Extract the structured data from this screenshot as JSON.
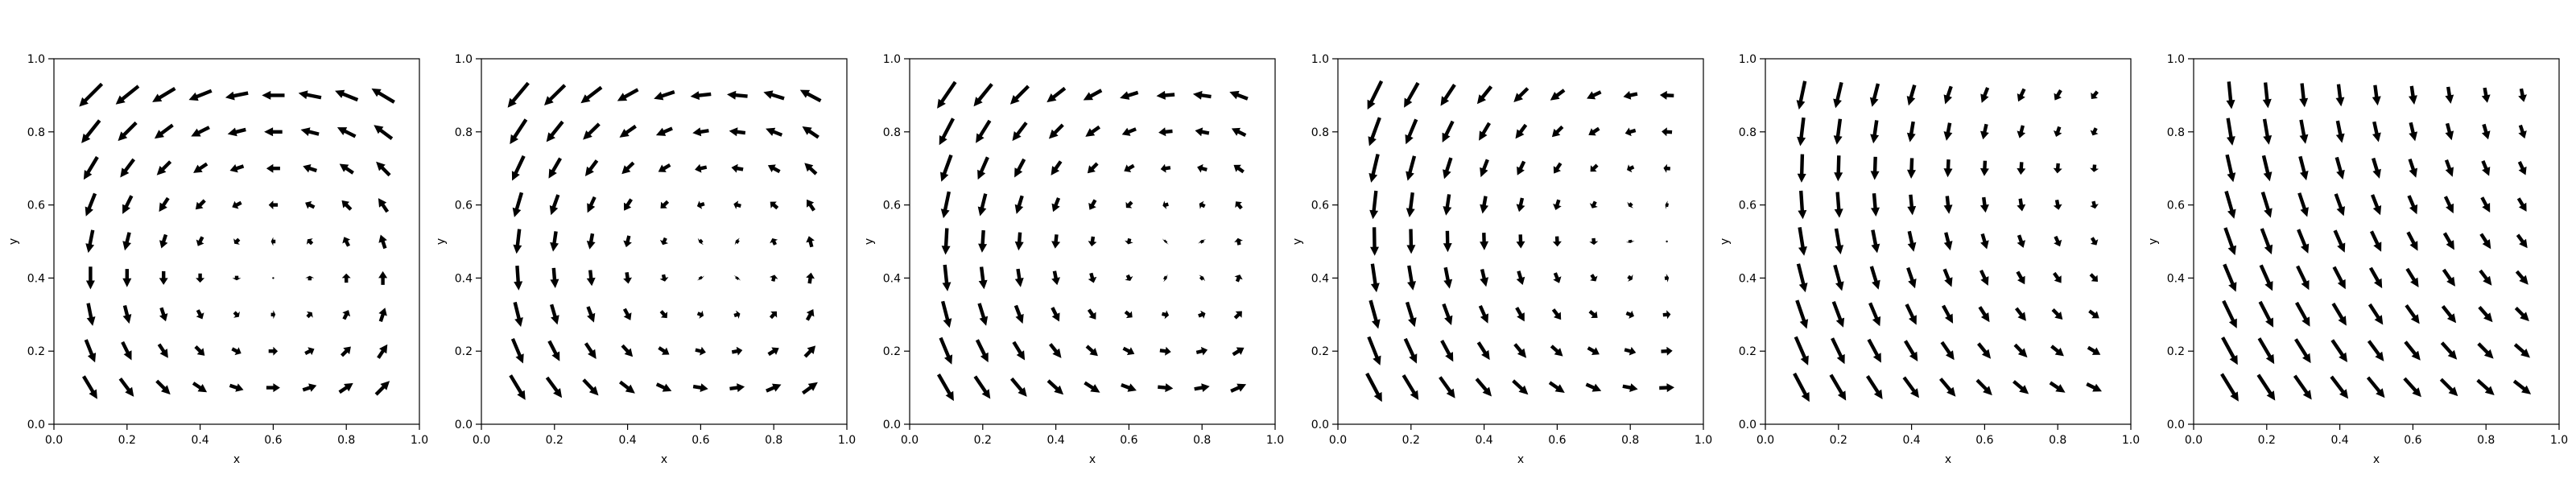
{
  "chart_data": [
    {
      "type": "quiver",
      "xlabel": "x",
      "ylabel": "y",
      "xlim": [
        0,
        1
      ],
      "ylim": [
        0,
        1
      ],
      "xticks": [
        "0.0",
        "0.2",
        "0.4",
        "0.6",
        "0.8",
        "1.0"
      ],
      "yticks": [
        "0.0",
        "0.2",
        "0.4",
        "0.6",
        "0.8",
        "1.0"
      ],
      "grid": false,
      "field": {
        "cx": 0.6,
        "cy": 0.4,
        "rot": 1.0,
        "drift_u": 0.0,
        "drift_v": 0.0
      }
    },
    {
      "type": "quiver",
      "xlabel": "x",
      "ylabel": "y",
      "xlim": [
        0,
        1
      ],
      "ylim": [
        0,
        1
      ],
      "xticks": [
        "0.0",
        "0.2",
        "0.4",
        "0.6",
        "0.8",
        "1.0"
      ],
      "yticks": [
        "0.0",
        "0.2",
        "0.4",
        "0.6",
        "0.8",
        "1.0"
      ],
      "grid": false,
      "field": {
        "cx": 0.62,
        "cy": 0.4,
        "rot": 0.85,
        "drift_u": 0.03,
        "drift_v": -0.03
      }
    },
    {
      "type": "quiver",
      "xlabel": "x",
      "ylabel": "y",
      "xlim": [
        0,
        1
      ],
      "ylim": [
        0,
        1
      ],
      "xticks": [
        "0.0",
        "0.2",
        "0.4",
        "0.6",
        "0.8",
        "1.0"
      ],
      "yticks": [
        "0.0",
        "0.2",
        "0.4",
        "0.6",
        "0.8",
        "1.0"
      ],
      "grid": false,
      "field": {
        "cx": 0.65,
        "cy": 0.38,
        "rot": 0.7,
        "drift_u": 0.06,
        "drift_v": -0.06
      }
    },
    {
      "type": "quiver",
      "xlabel": "x",
      "ylabel": "y",
      "xlim": [
        0,
        1
      ],
      "ylim": [
        0,
        1
      ],
      "xticks": [
        "0.0",
        "0.2",
        "0.4",
        "0.6",
        "0.8",
        "1.0"
      ],
      "yticks": [
        "0.0",
        "0.2",
        "0.4",
        "0.6",
        "0.8",
        "1.0"
      ],
      "grid": false,
      "field": {
        "cx": 0.7,
        "cy": 0.35,
        "rot": 0.55,
        "drift_u": 0.09,
        "drift_v": -0.1
      }
    },
    {
      "type": "quiver",
      "xlabel": "x",
      "ylabel": "y",
      "xlim": [
        0,
        1
      ],
      "ylim": [
        0,
        1
      ],
      "xticks": [
        "0.0",
        "0.2",
        "0.4",
        "0.6",
        "0.8",
        "1.0"
      ],
      "yticks": [
        "0.0",
        "0.2",
        "0.4",
        "0.6",
        "0.8",
        "1.0"
      ],
      "grid": false,
      "field": {
        "cx": 0.78,
        "cy": 0.3,
        "rot": 0.35,
        "drift_u": 0.13,
        "drift_v": -0.14
      }
    },
    {
      "type": "quiver",
      "xlabel": "x",
      "ylabel": "y",
      "xlim": [
        0,
        1
      ],
      "ylim": [
        0,
        1
      ],
      "xticks": [
        "0.0",
        "0.2",
        "0.4",
        "0.6",
        "0.8",
        "1.0"
      ],
      "yticks": [
        "0.0",
        "0.2",
        "0.4",
        "0.6",
        "0.8",
        "1.0"
      ],
      "grid": false,
      "field": {
        "cx": 0.85,
        "cy": 0.25,
        "rot": 0.2,
        "drift_u": 0.16,
        "drift_v": -0.16
      }
    }
  ]
}
